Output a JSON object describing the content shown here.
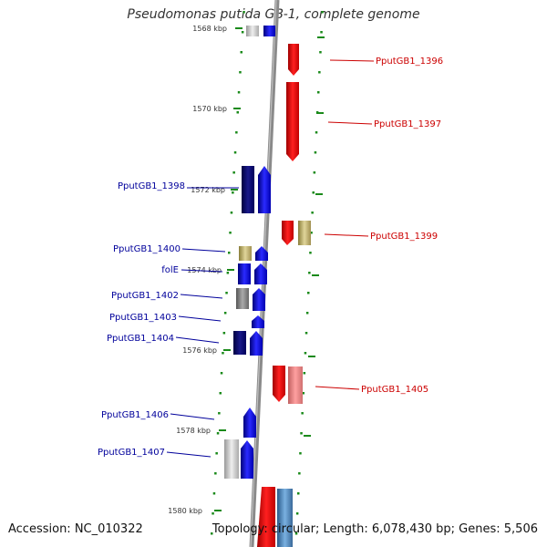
{
  "title": "Pseudomonas putida GB-1, complete genome",
  "footer": {
    "accession": "Accession: NC_010322",
    "topology": "Topology: circular; Length: 6,078,430 bp; Genes: 5,506"
  },
  "colors": {
    "reverse_label": "#00009b",
    "forward_label": "#cc0000",
    "axis": "#888888",
    "tick": "#1a8a1a"
  },
  "kbp_ticks": [
    "1568 kbp",
    "1570 kbp",
    "1572 kbp",
    "1574 kbp",
    "1576 kbp",
    "1578 kbp",
    "1580 kbp"
  ],
  "labels": {
    "left": [
      "PputGB1_1398",
      "PputGB1_1400",
      "folE",
      "PputGB1_1402",
      "PputGB1_1403",
      "PputGB1_1404",
      "PputGB1_1406",
      "PputGB1_1407"
    ],
    "right": [
      "PputGB1_1396",
      "PputGB1_1397",
      "PputGB1_1399",
      "PputGB1_1405"
    ]
  }
}
